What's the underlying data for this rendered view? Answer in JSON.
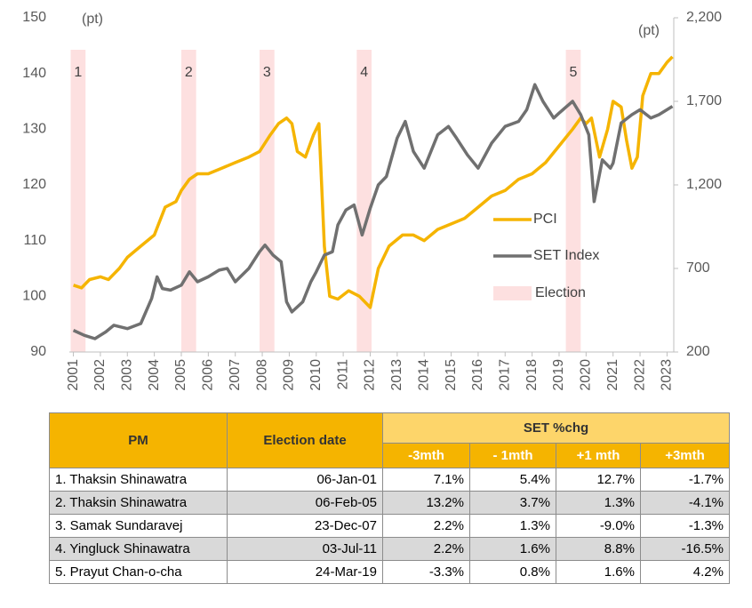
{
  "chart_data": {
    "type": "line",
    "y_unit_label": "(pt)",
    "y2_unit_label": "(pt)",
    "xlim": [
      2000.85,
      2023.25
    ],
    "xticks": [
      2001,
      2002,
      2003,
      2004,
      2005,
      2006,
      2007,
      2008,
      2009,
      2010,
      2011,
      2012,
      2013,
      2014,
      2015,
      2016,
      2017,
      2018,
      2019,
      2020,
      2021,
      2022,
      2023
    ],
    "ylim": [
      90,
      150
    ],
    "yticks": [
      90,
      100,
      110,
      120,
      130,
      140,
      150
    ],
    "y2lim": [
      200,
      2200
    ],
    "y2ticks": [
      200,
      700,
      {
        "value": 1200,
        "label": "1,200"
      },
      {
        "value": 1700,
        "label": "1,700"
      },
      {
        "value": 2200,
        "label": "2,200"
      }
    ],
    "legend": "right",
    "series": [
      {
        "name": "PCI",
        "color": "#f5b400",
        "x": [
          2001.0,
          2001.3,
          2001.6,
          2002.0,
          2002.3,
          2002.7,
          2003.0,
          2003.5,
          2004.0,
          2004.4,
          2004.8,
          2005.0,
          2005.3,
          2005.6,
          2006.0,
          2006.5,
          2007.0,
          2007.5,
          2007.9,
          2008.3,
          2008.6,
          2008.9,
          2009.1,
          2009.3,
          2009.6,
          2009.9,
          2010.1,
          2010.3,
          2010.5,
          2010.8,
          2011.2,
          2011.6,
          2012.0,
          2012.3,
          2012.7,
          2013.2,
          2013.6,
          2014.0,
          2014.5,
          2015.0,
          2015.5,
          2016.0,
          2016.5,
          2017.0,
          2017.5,
          2018.0,
          2018.5,
          2019.0,
          2019.5,
          2019.8,
          2020.0,
          2020.2,
          2020.5,
          2020.8,
          2021.0,
          2021.3,
          2021.5,
          2021.7,
          2021.9,
          2022.1,
          2022.4,
          2022.7,
          2023.0,
          2023.2
        ],
        "values": [
          102,
          101.5,
          103,
          103.5,
          103,
          105,
          107,
          109,
          111,
          116,
          117,
          119,
          121,
          122,
          122,
          123,
          124,
          125,
          126,
          129,
          131,
          132,
          131,
          126,
          125,
          129,
          131,
          109,
          100,
          99.5,
          101,
          100,
          98,
          105,
          109,
          111,
          111,
          110,
          112,
          113,
          114,
          116,
          118,
          119,
          121,
          122,
          124,
          127,
          130,
          132,
          131,
          132,
          125,
          130,
          135,
          134,
          128,
          123,
          125,
          136,
          140,
          140,
          142,
          143
        ]
      },
      {
        "name": "SET Index",
        "color": "#707070",
        "axis": "y2",
        "x": [
          2001.0,
          2001.4,
          2001.8,
          2002.2,
          2002.5,
          2003.0,
          2003.5,
          2003.9,
          2004.1,
          2004.3,
          2004.6,
          2005.0,
          2005.3,
          2005.6,
          2006.0,
          2006.4,
          2006.7,
          2007.0,
          2007.5,
          2007.9,
          2008.1,
          2008.4,
          2008.7,
          2008.9,
          2009.1,
          2009.5,
          2009.8,
          2010.0,
          2010.3,
          2010.6,
          2010.8,
          2011.1,
          2011.4,
          2011.7,
          2012.0,
          2012.3,
          2012.6,
          2013.0,
          2013.3,
          2013.6,
          2014.0,
          2014.5,
          2014.9,
          2015.2,
          2015.6,
          2016.0,
          2016.5,
          2017.0,
          2017.5,
          2017.8,
          2018.1,
          2018.4,
          2018.8,
          2019.0,
          2019.5,
          2019.8,
          2020.1,
          2020.3,
          2020.6,
          2020.9,
          2021.0,
          2021.3,
          2021.7,
          2022.0,
          2022.4,
          2022.7,
          2023.2
        ],
        "values": [
          330,
          300,
          280,
          320,
          360,
          340,
          370,
          520,
          650,
          580,
          570,
          600,
          680,
          620,
          650,
          690,
          700,
          620,
          700,
          800,
          840,
          780,
          740,
          500,
          440,
          500,
          620,
          680,
          780,
          800,
          960,
          1050,
          1080,
          900,
          1060,
          1200,
          1250,
          1480,
          1580,
          1400,
          1300,
          1500,
          1550,
          1480,
          1380,
          1300,
          1450,
          1550,
          1580,
          1650,
          1800,
          1700,
          1600,
          1630,
          1700,
          1620,
          1500,
          1100,
          1350,
          1300,
          1330,
          1570,
          1620,
          1650,
          1600,
          1620,
          1670
        ]
      }
    ],
    "bands_name": "Election",
    "bands_color": "#fde0e0",
    "bands": [
      {
        "label": "1",
        "x": [
          2000.9,
          2001.45
        ]
      },
      {
        "label": "2",
        "x": [
          2005.0,
          2005.55
        ]
      },
      {
        "label": "3",
        "x": [
          2007.9,
          2008.45
        ]
      },
      {
        "label": "4",
        "x": [
          2011.5,
          2012.05
        ]
      },
      {
        "label": "5",
        "x": [
          2019.25,
          2019.8
        ]
      }
    ]
  },
  "table": {
    "headers": [
      "PM",
      "Election date",
      "SET %chg"
    ],
    "subheaders": [
      "-3mth",
      "- 1mth",
      "+1 mth",
      "+3mth"
    ],
    "rows": [
      [
        "1. Thaksin Shinawatra",
        "06-Jan-01",
        "7.1%",
        "5.4%",
        "12.7%",
        "-1.7%"
      ],
      [
        "2. Thaksin Shinawatra",
        "06-Feb-05",
        "13.2%",
        "3.7%",
        "1.3%",
        "-4.1%"
      ],
      [
        "3. Samak Sundaravej",
        "23-Dec-07",
        "2.2%",
        "1.3%",
        "-9.0%",
        "-1.3%"
      ],
      [
        "4. Yingluck Shinawatra",
        "03-Jul-11",
        "2.2%",
        "1.6%",
        "8.8%",
        "-16.5%"
      ],
      [
        "5. Prayut Chan-o-cha",
        "24-Mar-19",
        "-3.3%",
        "0.8%",
        "1.6%",
        "4.2%"
      ]
    ]
  }
}
